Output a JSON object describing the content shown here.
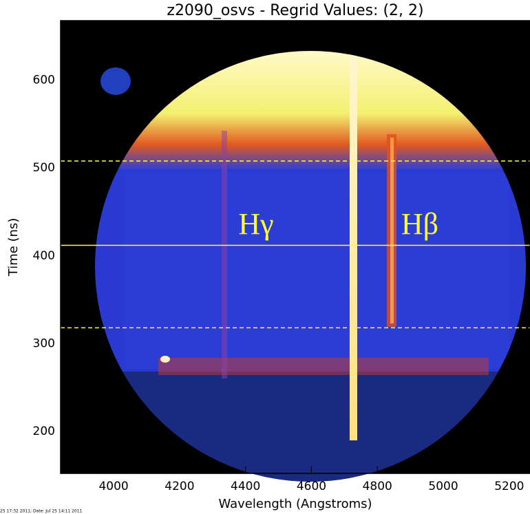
{
  "chart_data": {
    "type": "image",
    "title": "z2090_osvs - Regrid Values: (2, 2)",
    "xlabel": "Wavelength (Angstroms)",
    "ylabel": "Time (ns)",
    "xlim": [
      3839,
      5263
    ],
    "ylim": [
      152,
      668
    ],
    "xticks": [
      4000,
      4200,
      4400,
      4600,
      4800,
      5000,
      5200
    ],
    "yticks": [
      200,
      300,
      400,
      500,
      600
    ],
    "hlines": [
      {
        "value": 508,
        "style": "dashed",
        "color": "#ffff40"
      },
      {
        "value": 412,
        "style": "solid",
        "color": "#ffff40"
      },
      {
        "value": 318,
        "style": "dashed",
        "color": "#ffff40"
      }
    ],
    "annotations": [
      "Hγ",
      "Hβ"
    ],
    "footer": "25 17:32 2011; Date: Jul 25 14:11 2011"
  }
}
